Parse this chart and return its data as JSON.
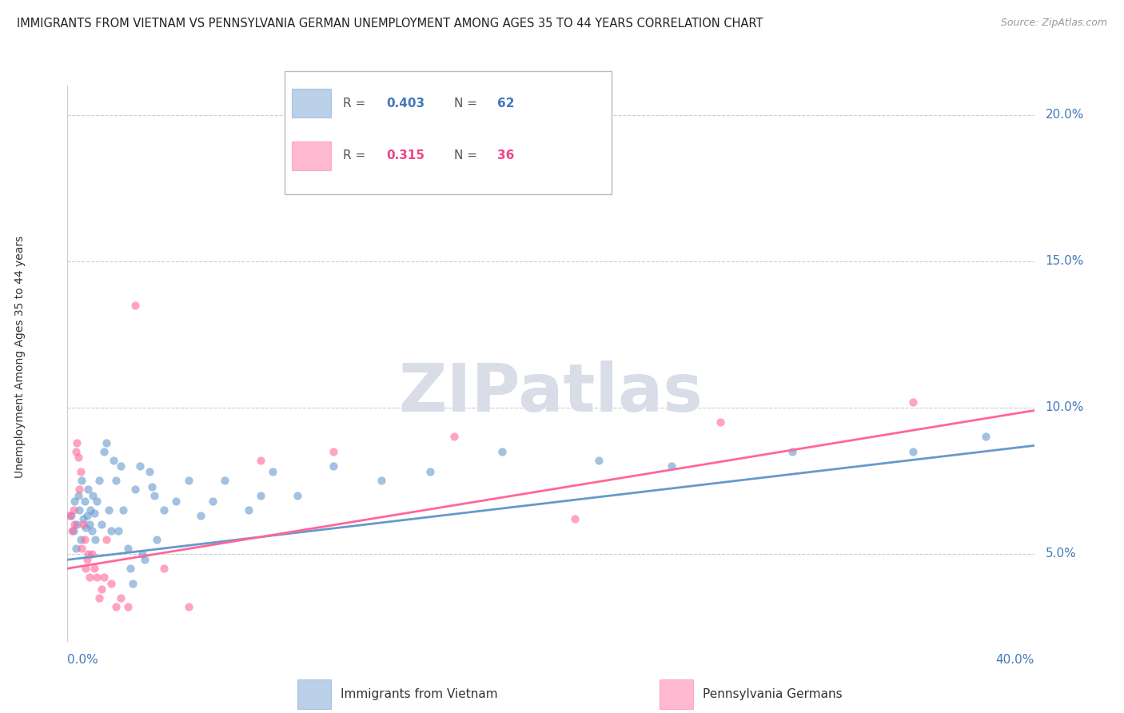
{
  "title": "IMMIGRANTS FROM VIETNAM VS PENNSYLVANIA GERMAN UNEMPLOYMENT AMONG AGES 35 TO 44 YEARS CORRELATION CHART",
  "source": "Source: ZipAtlas.com",
  "ylabel": "Unemployment Among Ages 35 to 44 years",
  "color_blue": "#6699CC",
  "color_pink": "#FF6699",
  "color_blue_text": "#4477BB",
  "color_pink_text": "#EE4488",
  "legend1_r": "0.403",
  "legend1_n": "62",
  "legend2_r": "0.315",
  "legend2_n": "36",
  "xlim": [
    0.0,
    40.0
  ],
  "ylim_bottom": 2.0,
  "ylim_top": 21.0,
  "yticks": [
    5.0,
    10.0,
    15.0,
    20.0
  ],
  "ytick_labels": [
    "5.0%",
    "10.0%",
    "15.0%",
    "20.0%"
  ],
  "blue_line_x": [
    0.0,
    40.0
  ],
  "blue_line_y": [
    4.8,
    8.7
  ],
  "pink_line_x": [
    0.0,
    40.0
  ],
  "pink_line_y": [
    4.5,
    9.9
  ],
  "blue_scatter": [
    [
      0.15,
      6.3
    ],
    [
      0.25,
      5.8
    ],
    [
      0.3,
      6.8
    ],
    [
      0.35,
      5.2
    ],
    [
      0.4,
      6.0
    ],
    [
      0.45,
      7.0
    ],
    [
      0.5,
      6.5
    ],
    [
      0.55,
      5.5
    ],
    [
      0.6,
      7.5
    ],
    [
      0.65,
      6.2
    ],
    [
      0.7,
      6.8
    ],
    [
      0.75,
      5.9
    ],
    [
      0.8,
      6.3
    ],
    [
      0.85,
      7.2
    ],
    [
      0.9,
      6.0
    ],
    [
      0.95,
      6.5
    ],
    [
      1.0,
      5.8
    ],
    [
      1.05,
      7.0
    ],
    [
      1.1,
      6.4
    ],
    [
      1.15,
      5.5
    ],
    [
      1.2,
      6.8
    ],
    [
      1.3,
      7.5
    ],
    [
      1.4,
      6.0
    ],
    [
      1.5,
      8.5
    ],
    [
      1.6,
      8.8
    ],
    [
      1.7,
      6.5
    ],
    [
      1.8,
      5.8
    ],
    [
      1.9,
      8.2
    ],
    [
      2.0,
      7.5
    ],
    [
      2.1,
      5.8
    ],
    [
      2.2,
      8.0
    ],
    [
      2.3,
      6.5
    ],
    [
      2.5,
      5.2
    ],
    [
      2.6,
      4.5
    ],
    [
      2.7,
      4.0
    ],
    [
      2.8,
      7.2
    ],
    [
      3.0,
      8.0
    ],
    [
      3.1,
      5.0
    ],
    [
      3.2,
      4.8
    ],
    [
      3.4,
      7.8
    ],
    [
      3.5,
      7.3
    ],
    [
      3.6,
      7.0
    ],
    [
      3.7,
      5.5
    ],
    [
      4.0,
      6.5
    ],
    [
      4.5,
      6.8
    ],
    [
      5.0,
      7.5
    ],
    [
      5.5,
      6.3
    ],
    [
      6.0,
      6.8
    ],
    [
      6.5,
      7.5
    ],
    [
      7.5,
      6.5
    ],
    [
      8.0,
      7.0
    ],
    [
      8.5,
      7.8
    ],
    [
      9.5,
      7.0
    ],
    [
      11.0,
      8.0
    ],
    [
      13.0,
      7.5
    ],
    [
      15.0,
      7.8
    ],
    [
      18.0,
      8.5
    ],
    [
      22.0,
      8.2
    ],
    [
      25.0,
      8.0
    ],
    [
      30.0,
      8.5
    ],
    [
      35.0,
      8.5
    ],
    [
      38.0,
      9.0
    ]
  ],
  "pink_scatter": [
    [
      0.1,
      6.3
    ],
    [
      0.2,
      5.8
    ],
    [
      0.25,
      6.5
    ],
    [
      0.3,
      6.0
    ],
    [
      0.35,
      8.5
    ],
    [
      0.4,
      8.8
    ],
    [
      0.45,
      8.3
    ],
    [
      0.5,
      7.2
    ],
    [
      0.55,
      7.8
    ],
    [
      0.6,
      5.2
    ],
    [
      0.65,
      6.0
    ],
    [
      0.7,
      5.5
    ],
    [
      0.75,
      4.5
    ],
    [
      0.8,
      4.8
    ],
    [
      0.85,
      5.0
    ],
    [
      0.9,
      4.2
    ],
    [
      1.0,
      5.0
    ],
    [
      1.1,
      4.5
    ],
    [
      1.2,
      4.2
    ],
    [
      1.3,
      3.5
    ],
    [
      1.4,
      3.8
    ],
    [
      1.5,
      4.2
    ],
    [
      1.6,
      5.5
    ],
    [
      1.8,
      4.0
    ],
    [
      2.0,
      3.2
    ],
    [
      2.2,
      3.5
    ],
    [
      2.5,
      3.2
    ],
    [
      2.8,
      13.5
    ],
    [
      4.0,
      4.5
    ],
    [
      5.0,
      3.2
    ],
    [
      8.0,
      8.2
    ],
    [
      11.0,
      8.5
    ],
    [
      16.0,
      9.0
    ],
    [
      21.0,
      6.2
    ],
    [
      27.0,
      9.5
    ],
    [
      35.0,
      10.2
    ]
  ],
  "background_color": "#ffffff",
  "grid_color": "#cccccc",
  "border_color": "#cccccc"
}
